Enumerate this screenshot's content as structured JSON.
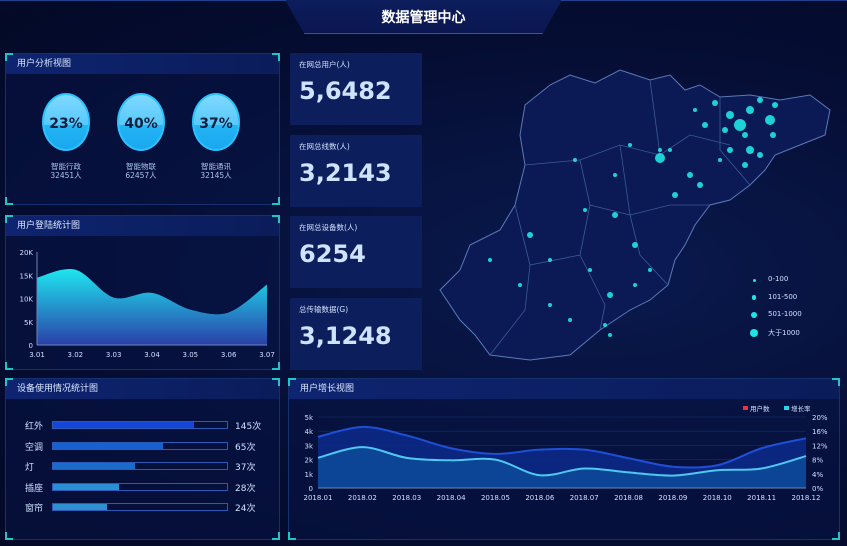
{
  "header": {
    "title": "数据管理中心"
  },
  "user_analysis": {
    "title": "用户分析视图",
    "items": [
      {
        "percent": "23%",
        "name": "智能行政",
        "count": "32451人",
        "fill": 0.23
      },
      {
        "percent": "40%",
        "name": "智能物联",
        "count": "62457人",
        "fill": 0.4
      },
      {
        "percent": "37%",
        "name": "智能通讯",
        "count": "32145人",
        "fill": 0.37
      }
    ]
  },
  "stats": [
    {
      "label": "在网总用户(人)",
      "value": "5,6482"
    },
    {
      "label": "在网总线数(人)",
      "value": "3,2143"
    },
    {
      "label": "在网总设备数(人)",
      "value": "6254"
    },
    {
      "label": "总传输数据(G)",
      "value": "3,1248"
    }
  ],
  "map": {
    "legend": [
      "0-100",
      "101-500",
      "501-1000",
      "大于1000"
    ],
    "dot_color": "#1fe6e6"
  },
  "chart_data": [
    {
      "type": "area",
      "title": "用户登陆统计图",
      "categories": [
        "3.01",
        "3.02",
        "3.03",
        "3.04",
        "3.05",
        "3.06",
        "3.07"
      ],
      "values": [
        14500,
        16200,
        10200,
        11200,
        7600,
        7000,
        13000
      ],
      "ylim": [
        0,
        20000
      ],
      "yticks": [
        "0",
        "5K",
        "10K",
        "15K",
        "20K"
      ],
      "colors": {
        "top": "#1ee6f0",
        "bottom": "#2a3fa8"
      }
    },
    {
      "type": "bar",
      "title": "设备使用情况统计图",
      "categories": [
        "红外",
        "空调",
        "灯",
        "插座",
        "窗帘"
      ],
      "values": [
        145,
        65,
        37,
        28,
        24
      ],
      "labels": [
        "145次",
        "65次",
        "37次",
        "28次",
        "24次"
      ],
      "fill": [
        0.81,
        0.63,
        0.47,
        0.38,
        0.31
      ],
      "colors": [
        "#1447d8",
        "#1660d0",
        "#1a6ccc",
        "#2b8fd6",
        "#2f8fd0"
      ]
    },
    {
      "type": "area",
      "title": "用户增长视图",
      "categories": [
        "2018.01",
        "2018.02",
        "2018.03",
        "2018.04",
        "2018.05",
        "2018.06",
        "2018.07",
        "2018.08",
        "2018.09",
        "2018.10",
        "2018.11",
        "2018.12"
      ],
      "series": [
        {
          "name": "用户数",
          "axis": "left",
          "values": [
            3.6,
            4.3,
            3.7,
            2.8,
            2.4,
            2.7,
            2.7,
            2.1,
            1.5,
            1.6,
            2.8,
            3.5
          ],
          "legend_color": "#e8334a",
          "line_color": "#1f4fd8"
        },
        {
          "name": "增长率",
          "axis": "right",
          "values": [
            8.5,
            11.5,
            8.5,
            7.8,
            8,
            3.6,
            5.5,
            4.4,
            3.5,
            5,
            5.5,
            9
          ],
          "legend_color": "#2fd0ea",
          "line_color": "#4fc8f0"
        }
      ],
      "ylim_left": [
        0,
        5
      ],
      "yticks_left": [
        "0",
        "1k",
        "2k",
        "3k",
        "4k",
        "5k"
      ],
      "ylim_right": [
        0,
        20
      ],
      "yticks_right": [
        "0%",
        "4%",
        "8%",
        "12%",
        "16%",
        "20%"
      ],
      "legend": "top-right",
      "grid": true
    }
  ]
}
